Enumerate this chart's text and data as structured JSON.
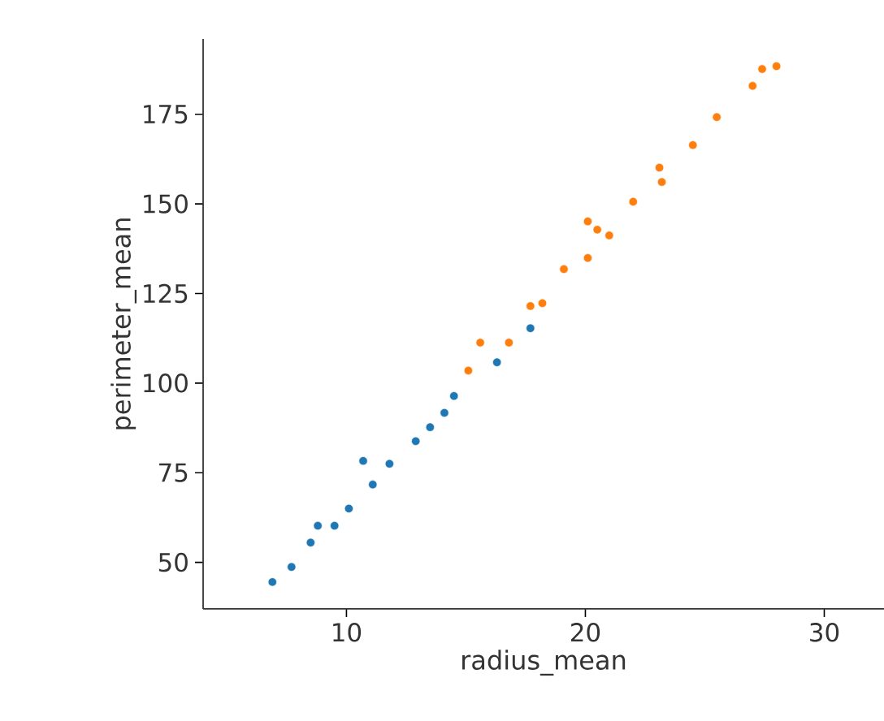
{
  "chart_data": {
    "type": "scatter",
    "xlabel": "radius_mean",
    "ylabel": "perimeter_mean",
    "xlim": [
      4,
      32.5
    ],
    "ylim": [
      37,
      196
    ],
    "xticks": [
      10,
      20,
      30
    ],
    "yticks": [
      50,
      75,
      100,
      125,
      150,
      175
    ],
    "grid": false,
    "series": [
      {
        "color": "#1f77b4",
        "x": [
          6.9,
          7.7,
          8.5,
          8.8,
          9.5,
          10.1,
          10.7,
          11.1,
          11.8,
          12.9,
          13.5,
          14.1,
          14.5,
          16.3,
          17.7
        ],
        "values": [
          44.5,
          48.7,
          55.5,
          60.2,
          60.2,
          65,
          78.3,
          71.7,
          77.5,
          83.8,
          87.7,
          91.7,
          96.4,
          105.8,
          115.3
        ]
      },
      {
        "color": "#ff7f0e",
        "x": [
          15.1,
          15.6,
          16.8,
          17.7,
          18.2,
          19.1,
          20.1,
          20.1,
          20.5,
          21.0,
          22.0,
          23.1,
          23.2,
          24.5,
          25.5,
          27.0,
          27.4,
          28.0
        ],
        "values": [
          103.5,
          111.3,
          111.3,
          121.5,
          122.3,
          131.8,
          134.9,
          145.1,
          142.8,
          141.2,
          150.6,
          160.1,
          156.1,
          166.4,
          174.2,
          182.9,
          187.6,
          188.4
        ]
      }
    ]
  }
}
